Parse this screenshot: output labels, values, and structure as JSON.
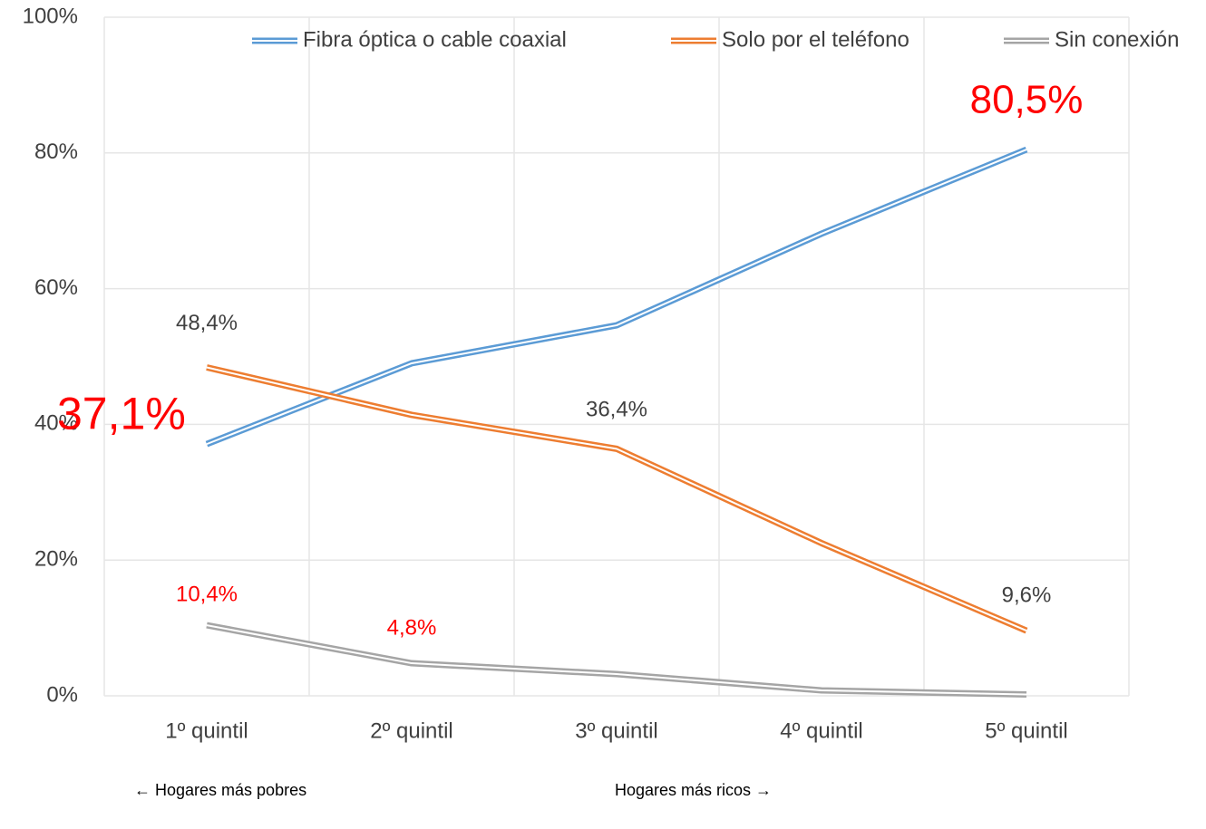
{
  "chart_data": {
    "type": "line",
    "categories": [
      "1º quintil",
      "2º quintil",
      "3º quintil",
      "4º quintil",
      "5º quintil"
    ],
    "series": [
      {
        "name": "Fibra óptica o cable coaxial",
        "color": "#5b9bd5",
        "values": [
          37.1,
          49.0,
          54.6,
          68.1,
          80.5
        ],
        "value_labels": [
          "37,1%",
          null,
          null,
          null,
          "80,5%"
        ],
        "value_label_colors": [
          "#ff0000",
          null,
          null,
          null,
          "#ff0000"
        ]
      },
      {
        "name": "Solo por el teléfono",
        "color": "#ed7d31",
        "values": [
          48.4,
          41.4,
          36.4,
          22.5,
          9.6
        ],
        "value_labels": [
          "48,4%",
          null,
          "36,4%",
          null,
          "9,6%"
        ],
        "value_label_colors": [
          "#404040",
          null,
          "#404040",
          null,
          "#404040"
        ]
      },
      {
        "name": "Sin conexión",
        "color": "#a5a5a5",
        "values": [
          10.4,
          4.8,
          3.2,
          0.8,
          0.2
        ],
        "value_labels": [
          "10,4%",
          "4,8%",
          null,
          null,
          null
        ],
        "value_label_colors": [
          "#ff0000",
          "#ff0000",
          null,
          null,
          null
        ]
      }
    ],
    "ylim": [
      0,
      100
    ],
    "yticks": [
      {
        "value": 0,
        "label": "0%"
      },
      {
        "value": 20,
        "label": "20%"
      },
      {
        "value": 40,
        "label": "40%"
      },
      {
        "value": 60,
        "label": "60%"
      },
      {
        "value": 80,
        "label": "80%"
      },
      {
        "value": 100,
        "label": "100%"
      }
    ],
    "grid": true,
    "legend": "top",
    "annotations": [
      "← Hogares más pobres",
      "Hogares más ricos →"
    ]
  }
}
